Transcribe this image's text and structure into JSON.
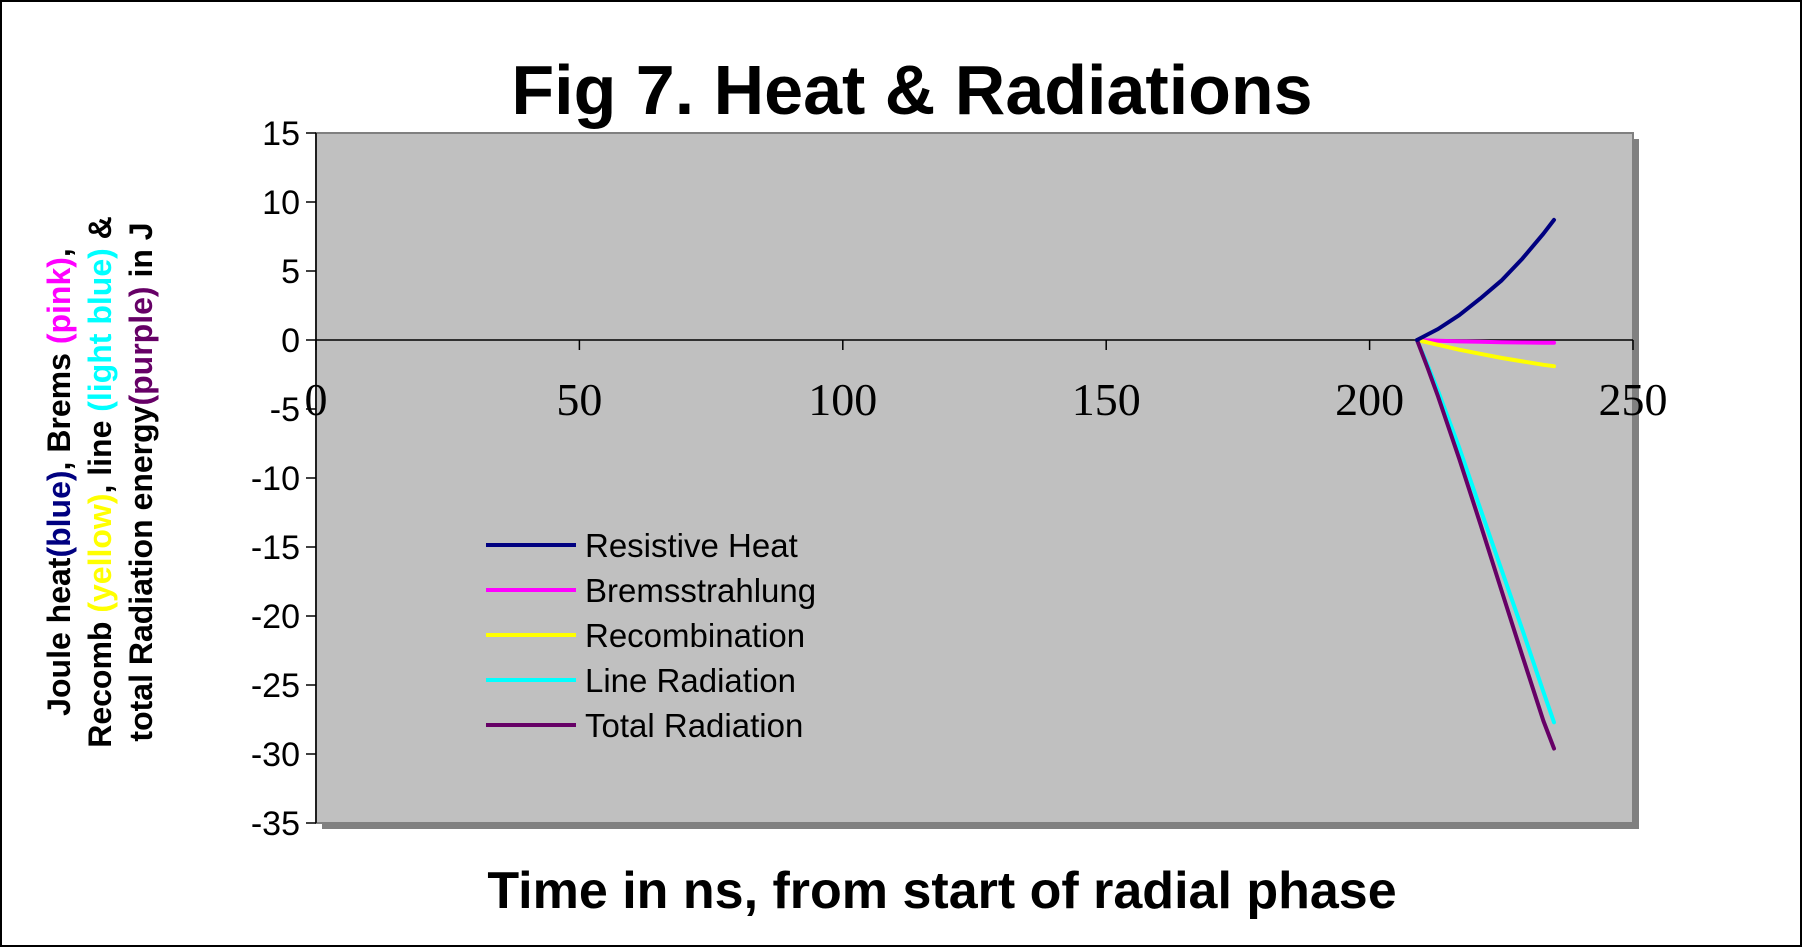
{
  "chart_data": {
    "type": "line",
    "title": "Fig 7. Heat & Radiations",
    "xlabel": "Time in ns, from start of radial phase",
    "ylabel_lines": [
      [
        {
          "text": "Joule heat",
          "color": "#000000"
        },
        {
          "text": "(blue)",
          "color": "#000080"
        },
        {
          "text": ", Brems ",
          "color": "#000000"
        },
        {
          "text": "(pink)",
          "color": "#ff00ff"
        },
        {
          "text": ",",
          "color": "#000000"
        }
      ],
      [
        {
          "text": "Recomb ",
          "color": "#000000"
        },
        {
          "text": "(yellow)",
          "color": "#ffff00"
        },
        {
          "text": ", line ",
          "color": "#000000"
        },
        {
          "text": "(light blue)",
          "color": "#00ffff"
        },
        {
          "text": " &",
          "color": "#000000"
        }
      ],
      [
        {
          "text": "total Radiation energy",
          "color": "#000000"
        },
        {
          "text": "(purple)",
          "color": "#660066"
        },
        {
          "text": " in J",
          "color": "#000000"
        }
      ]
    ],
    "xlim": [
      0,
      250
    ],
    "ylim": [
      -35,
      15
    ],
    "xticks": [
      0,
      50,
      100,
      150,
      200,
      250
    ],
    "yticks": [
      15,
      10,
      5,
      0,
      -5,
      -10,
      -15,
      -20,
      -25,
      -30,
      -35
    ],
    "plot_background": "#c0c0c0",
    "grid": false,
    "legend_position": "lower-left inside plot",
    "series": [
      {
        "name": "Resistive Heat",
        "color": "#000080",
        "x": [
          209,
          213,
          217,
          221,
          225,
          229,
          233,
          235
        ],
        "y": [
          0,
          0.8,
          1.8,
          3.0,
          4.3,
          5.9,
          7.7,
          8.7
        ]
      },
      {
        "name": "Bremsstrahlung",
        "color": "#ff00ff",
        "x": [
          209,
          213,
          217,
          221,
          225,
          229,
          233,
          235
        ],
        "y": [
          0,
          -0.05,
          -0.1,
          -0.13,
          -0.16,
          -0.18,
          -0.2,
          -0.2
        ]
      },
      {
        "name": "Recombination",
        "color": "#ffff00",
        "x": [
          209,
          213,
          217,
          221,
          225,
          229,
          233,
          235
        ],
        "y": [
          0,
          -0.35,
          -0.7,
          -1.0,
          -1.3,
          -1.55,
          -1.8,
          -1.9
        ]
      },
      {
        "name": "Line Radiation",
        "color": "#00ffff",
        "x": [
          209,
          211,
          213,
          217,
          221,
          225,
          229,
          233,
          235
        ],
        "y": [
          0,
          -1.8,
          -3.7,
          -7.8,
          -12.2,
          -16.6,
          -21.0,
          -25.5,
          -27.7
        ]
      },
      {
        "name": "Total Radiation",
        "color": "#660066",
        "x": [
          209,
          211,
          213,
          217,
          221,
          225,
          229,
          233,
          235
        ],
        "y": [
          0,
          -2.0,
          -4.1,
          -8.6,
          -13.3,
          -18.1,
          -22.9,
          -27.6,
          -29.6
        ]
      }
    ]
  }
}
